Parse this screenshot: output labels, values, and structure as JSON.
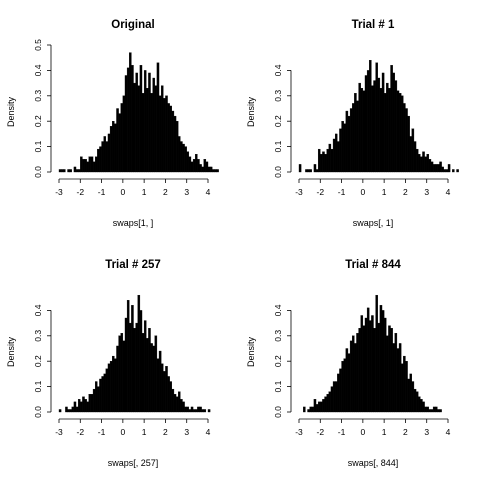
{
  "chart_data": [
    {
      "type": "bar",
      "title": "Original",
      "xlabel": "swaps[1, ]",
      "ylabel": "Density",
      "xlim": [
        -3.2,
        4.1
      ],
      "ylim": [
        0,
        0.5
      ],
      "xticks": [
        -3,
        -2,
        -1,
        0,
        1,
        2,
        3,
        4
      ],
      "yticks": [
        0.0,
        0.1,
        0.2,
        0.3,
        0.4,
        0.5
      ],
      "ytick_labels": [
        "0.0",
        "0.1",
        "0.2",
        "0.3",
        "0.4",
        "0.5"
      ],
      "bin_start": -3.0,
      "bin_width": 0.1,
      "values": [
        0.01,
        0.01,
        0.01,
        0.0,
        0.01,
        0.01,
        0.0,
        0.02,
        0.01,
        0.01,
        0.06,
        0.05,
        0.05,
        0.04,
        0.06,
        0.06,
        0.04,
        0.06,
        0.09,
        0.1,
        0.12,
        0.14,
        0.12,
        0.15,
        0.18,
        0.2,
        0.19,
        0.25,
        0.23,
        0.27,
        0.3,
        0.38,
        0.41,
        0.47,
        0.42,
        0.35,
        0.39,
        0.34,
        0.42,
        0.31,
        0.4,
        0.33,
        0.39,
        0.31,
        0.37,
        0.34,
        0.43,
        0.3,
        0.34,
        0.29,
        0.3,
        0.27,
        0.26,
        0.24,
        0.22,
        0.2,
        0.14,
        0.12,
        0.11,
        0.1,
        0.08,
        0.06,
        0.04,
        0.05,
        0.07,
        0.05,
        0.03,
        0.02,
        0.05,
        0.04,
        0.02,
        0.02,
        0.01,
        0.01,
        0.01,
        0.0,
        0.0,
        0.0,
        0.0,
        0.0,
        0.0,
        0.0,
        0.0,
        0.0,
        0.0,
        0.0,
        0.0,
        0.0,
        0.0,
        0.0,
        0.0,
        0.0,
        0.0,
        0.0,
        0.0,
        0.0,
        0.0,
        0.0,
        0.0,
        0.0,
        0.0,
        0.0,
        0.0,
        0.0,
        0.0,
        0.0,
        0.0,
        0.0,
        0.0,
        0.0,
        0.0,
        0.0,
        0.0,
        0.0,
        0.0,
        0.0,
        0.0,
        0.0,
        0.0,
        0.0,
        0.0,
        0.0,
        0.0,
        0.0,
        0.0,
        0.0,
        0.0,
        0.0,
        0.0,
        0.0
      ]
    },
    {
      "type": "bar",
      "title": "Trial # 1",
      "xlabel": "swaps[, 1]",
      "ylabel": "Density",
      "xlim": [
        -3.2,
        4.1
      ],
      "ylim": [
        0,
        0.5
      ],
      "xticks": [
        -3,
        -2,
        -1,
        0,
        1,
        2,
        3,
        4
      ],
      "yticks": [
        0.0,
        0.1,
        0.2,
        0.3,
        0.4
      ],
      "ytick_labels": [
        "0.0",
        "0.1",
        "0.2",
        "0.3",
        "0.4"
      ],
      "bin_start": -3.0,
      "bin_width": 0.1,
      "values": [
        0.03,
        0.0,
        0.0,
        0.01,
        0.01,
        0.01,
        0.0,
        0.03,
        0.01,
        0.09,
        0.07,
        0.08,
        0.07,
        0.09,
        0.11,
        0.09,
        0.13,
        0.15,
        0.12,
        0.17,
        0.2,
        0.19,
        0.24,
        0.22,
        0.25,
        0.27,
        0.31,
        0.28,
        0.35,
        0.33,
        0.32,
        0.38,
        0.4,
        0.44,
        0.34,
        0.36,
        0.43,
        0.37,
        0.33,
        0.39,
        0.31,
        0.35,
        0.33,
        0.42,
        0.39,
        0.36,
        0.32,
        0.31,
        0.3,
        0.27,
        0.25,
        0.22,
        0.14,
        0.17,
        0.12,
        0.09,
        0.07,
        0.06,
        0.08,
        0.06,
        0.07,
        0.05,
        0.04,
        0.03,
        0.03,
        0.03,
        0.04,
        0.02,
        0.01,
        0.01,
        0.03,
        0.0,
        0.01,
        0.0,
        0.01,
        0.0,
        0.0,
        0.0,
        0.0,
        0.0,
        0.0,
        0.0,
        0.0,
        0.0,
        0.0,
        0.0,
        0.0,
        0.0,
        0.0,
        0.0,
        0.0,
        0.0,
        0.0,
        0.0,
        0.0,
        0.0,
        0.0,
        0.0,
        0.0,
        0.0,
        0.0,
        0.0,
        0.0,
        0.0,
        0.0,
        0.0,
        0.0,
        0.0,
        0.0,
        0.0,
        0.0,
        0.0,
        0.0,
        0.0,
        0.0,
        0.0,
        0.0,
        0.0,
        0.0,
        0.0,
        0.0,
        0.0,
        0.0,
        0.0,
        0.0,
        0.0,
        0.0,
        0.0,
        0.0,
        0.0
      ]
    },
    {
      "type": "bar",
      "title": "Trial # 257",
      "xlabel": "swaps[, 257]",
      "ylabel": "Density",
      "xlim": [
        -3.2,
        4.1
      ],
      "ylim": [
        0,
        0.5
      ],
      "xticks": [
        -3,
        -2,
        -1,
        0,
        1,
        2,
        3,
        4
      ],
      "yticks": [
        0.0,
        0.1,
        0.2,
        0.3,
        0.4
      ],
      "ytick_labels": [
        "0.0",
        "0.1",
        "0.2",
        "0.3",
        "0.4"
      ],
      "bin_start": -3.0,
      "bin_width": 0.1,
      "values": [
        0.01,
        0.0,
        0.0,
        0.02,
        0.01,
        0.01,
        0.02,
        0.04,
        0.02,
        0.05,
        0.04,
        0.06,
        0.05,
        0.04,
        0.07,
        0.07,
        0.09,
        0.12,
        0.1,
        0.13,
        0.14,
        0.15,
        0.17,
        0.19,
        0.2,
        0.22,
        0.21,
        0.26,
        0.3,
        0.31,
        0.28,
        0.37,
        0.44,
        0.35,
        0.42,
        0.33,
        0.35,
        0.46,
        0.4,
        0.31,
        0.36,
        0.29,
        0.33,
        0.27,
        0.26,
        0.3,
        0.21,
        0.24,
        0.19,
        0.16,
        0.18,
        0.14,
        0.12,
        0.09,
        0.07,
        0.06,
        0.08,
        0.05,
        0.04,
        0.02,
        0.02,
        0.01,
        0.02,
        0.01,
        0.01,
        0.02,
        0.02,
        0.01,
        0.01,
        0.0,
        0.01,
        0.0,
        0.0,
        0.0,
        0.0,
        0.0,
        0.0,
        0.0,
        0.0,
        0.0,
        0.0,
        0.0,
        0.0,
        0.0,
        0.0,
        0.0,
        0.0,
        0.0,
        0.0,
        0.0,
        0.0,
        0.0,
        0.0,
        0.0,
        0.0,
        0.0,
        0.0,
        0.0,
        0.0,
        0.0,
        0.0,
        0.0,
        0.0,
        0.0,
        0.0,
        0.0,
        0.0,
        0.0,
        0.0,
        0.0,
        0.0,
        0.0,
        0.0,
        0.0,
        0.0,
        0.0,
        0.0,
        0.0,
        0.0,
        0.0,
        0.0,
        0.0,
        0.0,
        0.0,
        0.0,
        0.0,
        0.0,
        0.0,
        0.0,
        0.0
      ]
    },
    {
      "type": "bar",
      "title": "Trial # 844",
      "xlabel": "swaps[, 844]",
      "ylabel": "Density",
      "xlim": [
        -3.2,
        4.1
      ],
      "ylim": [
        0,
        0.5
      ],
      "xticks": [
        -3,
        -2,
        -1,
        0,
        1,
        2,
        3,
        4
      ],
      "yticks": [
        0.0,
        0.1,
        0.2,
        0.3,
        0.4
      ],
      "ytick_labels": [
        "0.0",
        "0.1",
        "0.2",
        "0.3",
        "0.4"
      ],
      "bin_start": -3.0,
      "bin_width": 0.1,
      "values": [
        0.0,
        0.0,
        0.02,
        0.0,
        0.01,
        0.02,
        0.02,
        0.05,
        0.03,
        0.04,
        0.04,
        0.05,
        0.06,
        0.07,
        0.08,
        0.1,
        0.12,
        0.12,
        0.15,
        0.17,
        0.2,
        0.21,
        0.25,
        0.23,
        0.28,
        0.3,
        0.27,
        0.31,
        0.33,
        0.38,
        0.34,
        0.37,
        0.41,
        0.36,
        0.38,
        0.33,
        0.46,
        0.35,
        0.42,
        0.4,
        0.37,
        0.3,
        0.34,
        0.33,
        0.27,
        0.31,
        0.25,
        0.27,
        0.19,
        0.22,
        0.2,
        0.13,
        0.15,
        0.12,
        0.09,
        0.08,
        0.06,
        0.05,
        0.04,
        0.02,
        0.02,
        0.01,
        0.01,
        0.02,
        0.02,
        0.01,
        0.01,
        0.0,
        0.0,
        0.0,
        0.0,
        0.0,
        0.0,
        0.0,
        0.0,
        0.0,
        0.0,
        0.0,
        0.0,
        0.0,
        0.0,
        0.0,
        0.0,
        0.0,
        0.0,
        0.0,
        0.0,
        0.0,
        0.0,
        0.0,
        0.0,
        0.0,
        0.0,
        0.0,
        0.0,
        0.0,
        0.0,
        0.0,
        0.0,
        0.0,
        0.0,
        0.0,
        0.0,
        0.0,
        0.0,
        0.0,
        0.0,
        0.0,
        0.0,
        0.0,
        0.0,
        0.0,
        0.0,
        0.0,
        0.0,
        0.0,
        0.0,
        0.0,
        0.0,
        0.0,
        0.0,
        0.0,
        0.0,
        0.0,
        0.0,
        0.0,
        0.0,
        0.0,
        0.0,
        0.0,
        0.0
      ]
    }
  ]
}
